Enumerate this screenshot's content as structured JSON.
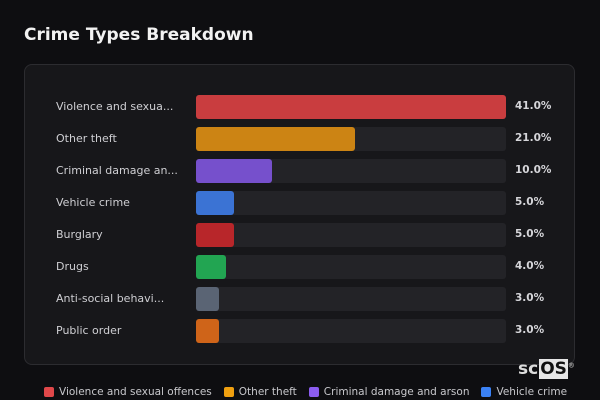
{
  "title": "Crime Types Breakdown",
  "logo": {
    "prefix": "sc",
    "boxed": "OS",
    "mark": "®"
  },
  "chart_data": {
    "type": "bar",
    "orientation": "horizontal",
    "title": "Crime Types Breakdown",
    "categories": [
      "Violence and sexua...",
      "Other theft",
      "Criminal damage an...",
      "Vehicle crime",
      "Burglary",
      "Drugs",
      "Anti-social behavi...",
      "Public order"
    ],
    "values": [
      41.0,
      21.0,
      10.0,
      5.0,
      5.0,
      4.0,
      3.0,
      3.0
    ],
    "value_labels": [
      "41.0%",
      "21.0%",
      "10.0%",
      "5.0%",
      "5.0%",
      "4.0%",
      "3.0%",
      "3.0%"
    ],
    "colors": [
      "#c93d3f",
      "#cc8414",
      "#7650cc",
      "#3b73d4",
      "#b8262a",
      "#22a552",
      "#5a6474",
      "#cf6419"
    ],
    "xlim": [
      0,
      41
    ],
    "legend": [
      {
        "label": "Violence and sexual offences",
        "color": "#e0484a"
      },
      {
        "label": "Other theft",
        "color": "#f0a010"
      },
      {
        "label": "Criminal damage and arson",
        "color": "#8b5cf0"
      },
      {
        "label": "Vehicle crime",
        "color": "#3b82f6"
      }
    ],
    "legend_position": "bottom"
  }
}
